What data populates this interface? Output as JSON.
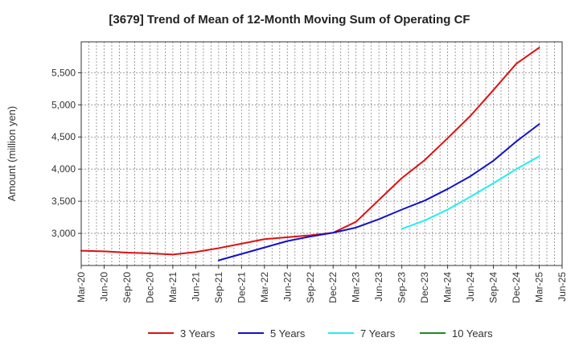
{
  "chart_data": {
    "type": "line",
    "title": "[3679]  Trend of Mean of 12-Month Moving Sum of Operating CF",
    "xlabel": "",
    "ylabel": "Amount (million yen)",
    "x_ticks": [
      "Mar-20",
      "Jun-20",
      "Sep-20",
      "Dec-20",
      "Mar-21",
      "Jun-21",
      "Sep-21",
      "Dec-21",
      "Mar-22",
      "Jun-22",
      "Sep-22",
      "Dec-22",
      "Mar-23",
      "Jun-23",
      "Sep-23",
      "Dec-23",
      "Mar-24",
      "Jun-24",
      "Sep-24",
      "Dec-24",
      "Mar-25",
      "Jun-25"
    ],
    "y_ticks": [
      3000,
      3500,
      4000,
      4500,
      5000,
      5500
    ],
    "y_tick_labels": [
      "3,000",
      "3,500",
      "4,000",
      "4,500",
      "5,000",
      "5,500"
    ],
    "ylim": [
      2500,
      5980
    ],
    "grid": true,
    "legend_position": "bottom",
    "series": [
      {
        "name": "3 Years",
        "color": "#dd1111",
        "x": [
          "Mar-20",
          "Jun-20",
          "Sep-20",
          "Dec-20",
          "Mar-21",
          "Jun-21",
          "Sep-21",
          "Dec-21",
          "Mar-22",
          "Jun-22",
          "Sep-22",
          "Dec-22",
          "Mar-23",
          "Jun-23",
          "Sep-23",
          "Dec-23",
          "Mar-24",
          "Jun-24",
          "Sep-24",
          "Dec-24",
          "Mar-25"
        ],
        "values": [
          2730,
          2720,
          2700,
          2690,
          2670,
          2710,
          2770,
          2840,
          2910,
          2940,
          2970,
          3010,
          3180,
          3520,
          3860,
          4140,
          4480,
          4830,
          5230,
          5640,
          5890
        ]
      },
      {
        "name": "5 Years",
        "color": "#1111cc",
        "x": [
          "Sep-21",
          "Dec-21",
          "Mar-22",
          "Jun-22",
          "Sep-22",
          "Dec-22",
          "Mar-23",
          "Jun-23",
          "Sep-23",
          "Dec-23",
          "Mar-24",
          "Jun-24",
          "Sep-24",
          "Dec-24",
          "Mar-25"
        ],
        "values": [
          2580,
          2680,
          2780,
          2880,
          2950,
          3010,
          3090,
          3220,
          3370,
          3510,
          3690,
          3890,
          4130,
          4430,
          4700
        ]
      },
      {
        "name": "7 Years",
        "color": "#22eeee",
        "x": [
          "Sep-23",
          "Dec-23",
          "Mar-24",
          "Jun-24",
          "Sep-24",
          "Dec-24",
          "Mar-25"
        ],
        "values": [
          3070,
          3200,
          3370,
          3570,
          3780,
          4000,
          4200
        ]
      },
      {
        "name": "10 Years",
        "color": "#228822",
        "x": [],
        "values": []
      }
    ]
  }
}
